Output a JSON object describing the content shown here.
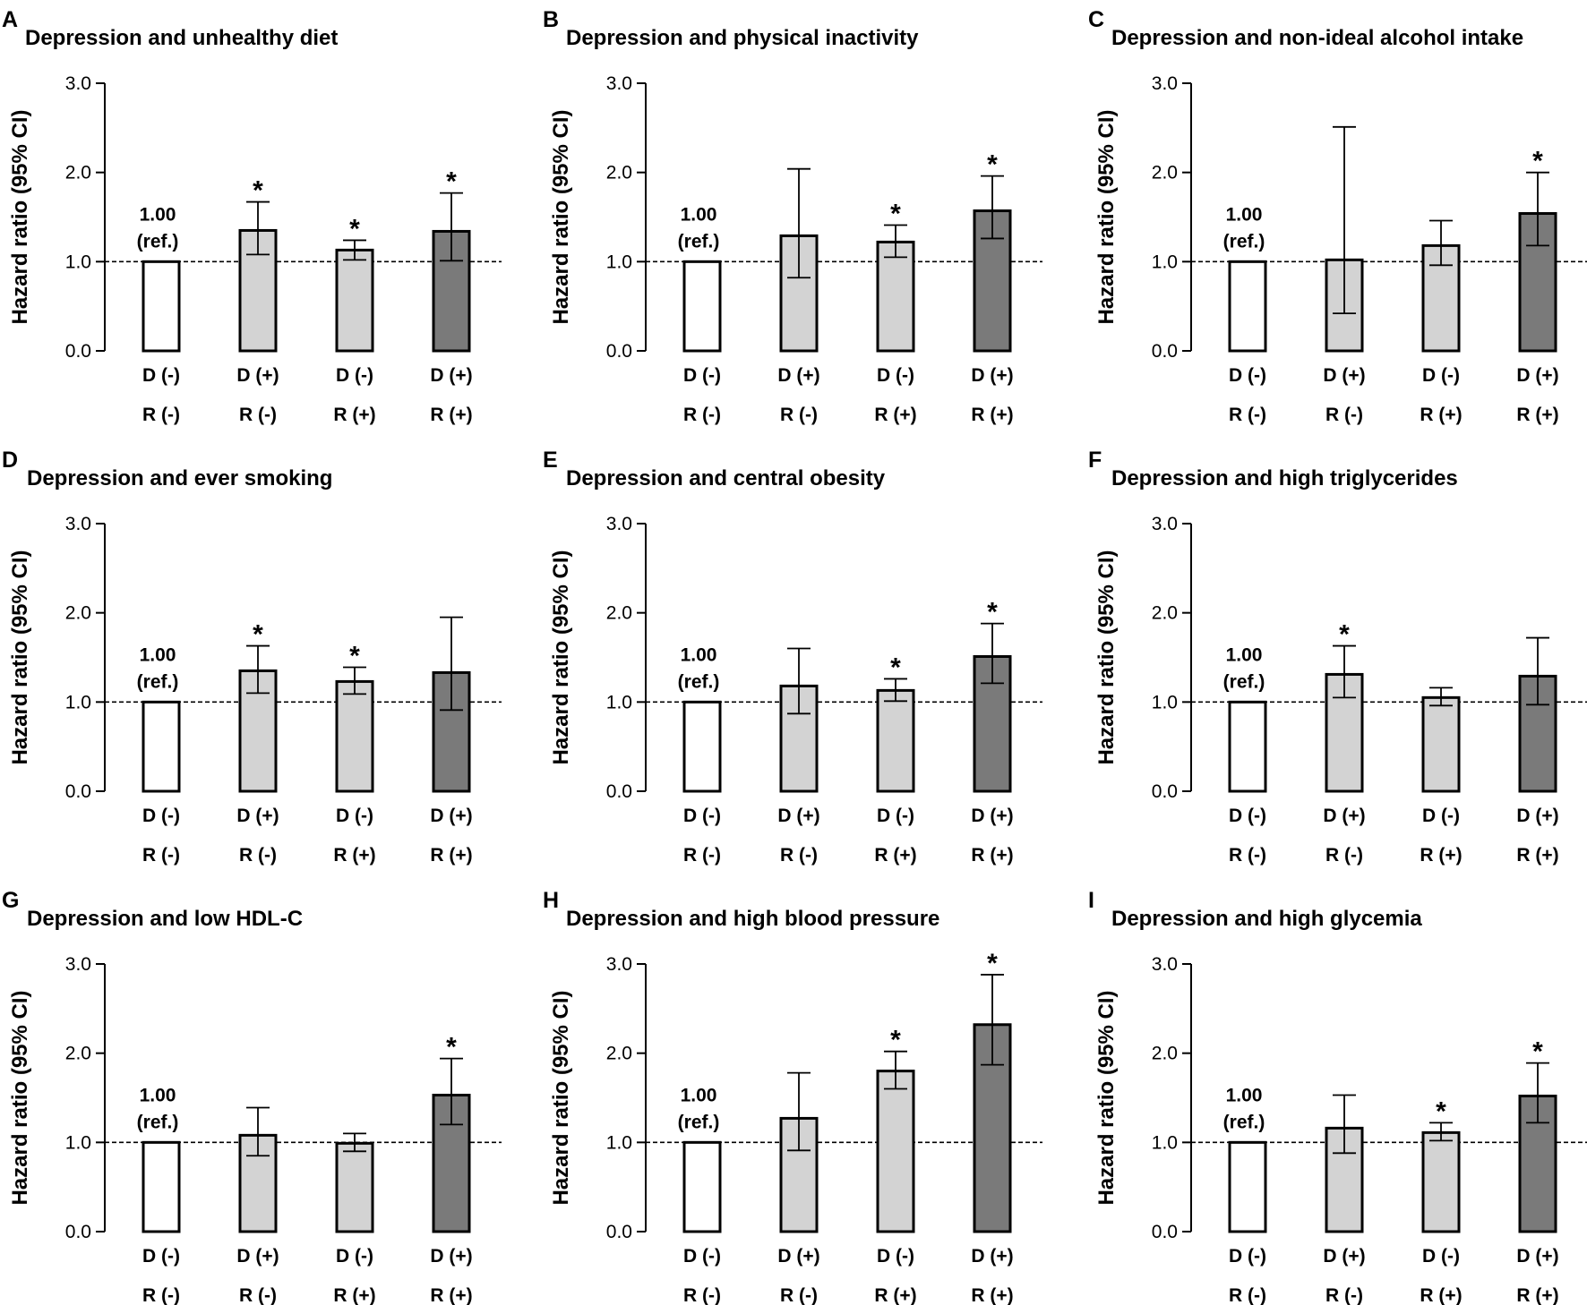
{
  "chart_data": [
    {
      "type": "bar",
      "letter": "A",
      "title": "Depression and unhealthy diet",
      "ylabel": "Hazard ratio (95% CI)",
      "ylim": [
        0,
        3
      ],
      "yticks": [
        "0.0",
        "1.0",
        "2.0",
        "3.0"
      ],
      "reference_line": 1.0,
      "ref_label": [
        "1.00",
        "(ref.)"
      ],
      "categories": [
        [
          "D (-)",
          "R (-)"
        ],
        [
          "D (+)",
          "R (-)"
        ],
        [
          "D (-)",
          "R (+)"
        ],
        [
          "D (+)",
          "R (+)"
        ]
      ],
      "values": [
        1.0,
        1.35,
        1.13,
        1.34
      ],
      "ci_low": [
        null,
        1.08,
        1.02,
        1.01
      ],
      "ci_high": [
        null,
        1.67,
        1.24,
        1.77
      ],
      "significant": [
        false,
        true,
        true,
        true
      ],
      "bar_fills": [
        "#ffffff",
        "#d3d3d3",
        "#d3d3d3",
        "#7a7a7a"
      ]
    },
    {
      "type": "bar",
      "letter": "B",
      "title": "Depression and physical inactivity",
      "ylabel": "Hazard ratio (95% CI)",
      "ylim": [
        0,
        3
      ],
      "yticks": [
        "0.0",
        "1.0",
        "2.0",
        "3.0"
      ],
      "reference_line": 1.0,
      "ref_label": [
        "1.00",
        "(ref.)"
      ],
      "categories": [
        [
          "D (-)",
          "R (-)"
        ],
        [
          "D (+)",
          "R (-)"
        ],
        [
          "D (-)",
          "R (+)"
        ],
        [
          "D (+)",
          "R (+)"
        ]
      ],
      "values": [
        1.0,
        1.29,
        1.22,
        1.57
      ],
      "ci_low": [
        null,
        0.82,
        1.05,
        1.26
      ],
      "ci_high": [
        null,
        2.04,
        1.41,
        1.96
      ],
      "significant": [
        false,
        false,
        true,
        true
      ],
      "bar_fills": [
        "#ffffff",
        "#d3d3d3",
        "#d3d3d3",
        "#7a7a7a"
      ]
    },
    {
      "type": "bar",
      "letter": "C",
      "title": "Depression and non-ideal alcohol intake",
      "ylabel": "Hazard ratio (95% CI)",
      "ylim": [
        0,
        3
      ],
      "yticks": [
        "0.0",
        "1.0",
        "2.0",
        "3.0"
      ],
      "reference_line": 1.0,
      "ref_label": [
        "1.00",
        "(ref.)"
      ],
      "categories": [
        [
          "D (-)",
          "R (-)"
        ],
        [
          "D (+)",
          "R (-)"
        ],
        [
          "D (-)",
          "R (+)"
        ],
        [
          "D (+)",
          "R (+)"
        ]
      ],
      "values": [
        1.0,
        1.02,
        1.18,
        1.54
      ],
      "ci_low": [
        null,
        0.42,
        0.96,
        1.18
      ],
      "ci_high": [
        null,
        2.51,
        1.46,
        2.0
      ],
      "significant": [
        false,
        false,
        false,
        true
      ],
      "bar_fills": [
        "#ffffff",
        "#d3d3d3",
        "#d3d3d3",
        "#7a7a7a"
      ]
    },
    {
      "type": "bar",
      "letter": "D",
      "title": "Depression and ever smoking",
      "ylabel": "Hazard ratio (95% CI)",
      "ylim": [
        0,
        3
      ],
      "yticks": [
        "0.0",
        "1.0",
        "2.0",
        "3.0"
      ],
      "reference_line": 1.0,
      "ref_label": [
        "1.00",
        "(ref.)"
      ],
      "categories": [
        [
          "D (-)",
          "R (-)"
        ],
        [
          "D (+)",
          "R (-)"
        ],
        [
          "D (-)",
          "R (+)"
        ],
        [
          "D (+)",
          "R (+)"
        ]
      ],
      "values": [
        1.0,
        1.35,
        1.23,
        1.33
      ],
      "ci_low": [
        null,
        1.1,
        1.09,
        0.91
      ],
      "ci_high": [
        null,
        1.63,
        1.39,
        1.95
      ],
      "significant": [
        false,
        true,
        true,
        false
      ],
      "bar_fills": [
        "#ffffff",
        "#d3d3d3",
        "#d3d3d3",
        "#7a7a7a"
      ]
    },
    {
      "type": "bar",
      "letter": "E",
      "title": "Depression and central obesity",
      "ylabel": "Hazard ratio (95% CI)",
      "ylim": [
        0,
        3
      ],
      "yticks": [
        "0.0",
        "1.0",
        "2.0",
        "3.0"
      ],
      "reference_line": 1.0,
      "ref_label": [
        "1.00",
        "(ref.)"
      ],
      "categories": [
        [
          "D (-)",
          "R (-)"
        ],
        [
          "D (+)",
          "R (-)"
        ],
        [
          "D (-)",
          "R (+)"
        ],
        [
          "D (+)",
          "R (+)"
        ]
      ],
      "values": [
        1.0,
        1.18,
        1.13,
        1.51
      ],
      "ci_low": [
        null,
        0.87,
        1.01,
        1.21
      ],
      "ci_high": [
        null,
        1.6,
        1.26,
        1.88
      ],
      "significant": [
        false,
        false,
        true,
        true
      ],
      "bar_fills": [
        "#ffffff",
        "#d3d3d3",
        "#d3d3d3",
        "#7a7a7a"
      ]
    },
    {
      "type": "bar",
      "letter": "F",
      "title": "Depression and high triglycerides",
      "ylabel": "Hazard ratio (95% CI)",
      "ylim": [
        0,
        3
      ],
      "yticks": [
        "0.0",
        "1.0",
        "2.0",
        "3.0"
      ],
      "reference_line": 1.0,
      "ref_label": [
        "1.00",
        "(ref.)"
      ],
      "categories": [
        [
          "D (-)",
          "R (-)"
        ],
        [
          "D (+)",
          "R (-)"
        ],
        [
          "D (-)",
          "R (+)"
        ],
        [
          "D (+)",
          "R (+)"
        ]
      ],
      "values": [
        1.0,
        1.31,
        1.05,
        1.29
      ],
      "ci_low": [
        null,
        1.05,
        0.96,
        0.97
      ],
      "ci_high": [
        null,
        1.63,
        1.16,
        1.72
      ],
      "significant": [
        false,
        true,
        false,
        false
      ],
      "bar_fills": [
        "#ffffff",
        "#d3d3d3",
        "#d3d3d3",
        "#7a7a7a"
      ]
    },
    {
      "type": "bar",
      "letter": "G",
      "title": "Depression and low HDL-C",
      "ylabel": "Hazard ratio (95% CI)",
      "ylim": [
        0,
        3
      ],
      "yticks": [
        "0.0",
        "1.0",
        "2.0",
        "3.0"
      ],
      "reference_line": 1.0,
      "ref_label": [
        "1.00",
        "(ref.)"
      ],
      "categories": [
        [
          "D (-)",
          "R (-)"
        ],
        [
          "D (+)",
          "R (-)"
        ],
        [
          "D (-)",
          "R (+)"
        ],
        [
          "D (+)",
          "R (+)"
        ]
      ],
      "values": [
        1.0,
        1.08,
        0.99,
        1.53
      ],
      "ci_low": [
        null,
        0.85,
        0.9,
        1.2
      ],
      "ci_high": [
        null,
        1.39,
        1.1,
        1.94
      ],
      "significant": [
        false,
        false,
        false,
        true
      ],
      "bar_fills": [
        "#ffffff",
        "#d3d3d3",
        "#d3d3d3",
        "#7a7a7a"
      ]
    },
    {
      "type": "bar",
      "letter": "H",
      "title": "Depression and high blood pressure",
      "ylabel": "Hazard ratio (95% CI)",
      "ylim": [
        0,
        3
      ],
      "yticks": [
        "0.0",
        "1.0",
        "2.0",
        "3.0"
      ],
      "reference_line": 1.0,
      "ref_label": [
        "1.00",
        "(ref.)"
      ],
      "categories": [
        [
          "D (-)",
          "R (-)"
        ],
        [
          "D (+)",
          "R (-)"
        ],
        [
          "D (-)",
          "R (+)"
        ],
        [
          "D (+)",
          "R (+)"
        ]
      ],
      "values": [
        1.0,
        1.27,
        1.8,
        2.32
      ],
      "ci_low": [
        null,
        0.91,
        1.6,
        1.87
      ],
      "ci_high": [
        null,
        1.78,
        2.02,
        2.88
      ],
      "significant": [
        false,
        false,
        true,
        true
      ],
      "bar_fills": [
        "#ffffff",
        "#d3d3d3",
        "#d3d3d3",
        "#7a7a7a"
      ]
    },
    {
      "type": "bar",
      "letter": "I",
      "title": "Depression and high glycemia",
      "ylabel": "Hazard ratio (95% CI)",
      "ylim": [
        0,
        3
      ],
      "yticks": [
        "0.0",
        "1.0",
        "2.0",
        "3.0"
      ],
      "reference_line": 1.0,
      "ref_label": [
        "1.00",
        "(ref.)"
      ],
      "categories": [
        [
          "D (-)",
          "R (-)"
        ],
        [
          "D (+)",
          "R (-)"
        ],
        [
          "D (-)",
          "R (+)"
        ],
        [
          "D (+)",
          "R (+)"
        ]
      ],
      "values": [
        1.0,
        1.16,
        1.11,
        1.52
      ],
      "ci_low": [
        null,
        0.88,
        1.02,
        1.22
      ],
      "ci_high": [
        null,
        1.53,
        1.22,
        1.89
      ],
      "significant": [
        false,
        false,
        true,
        true
      ],
      "bar_fills": [
        "#ffffff",
        "#d3d3d3",
        "#d3d3d3",
        "#7a7a7a"
      ]
    }
  ],
  "significance_marker": "*"
}
